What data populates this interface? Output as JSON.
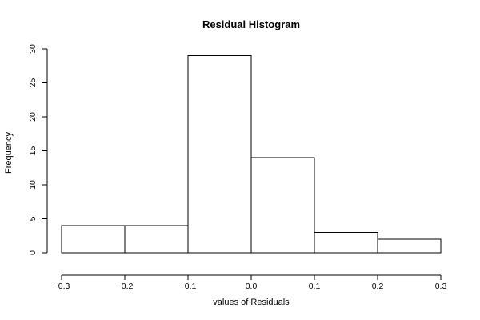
{
  "chart_data": {
    "type": "bar",
    "title": "Residual Histogram",
    "xlabel": "values of Residuals",
    "ylabel": "Frequency",
    "bins": [
      {
        "from": -0.3,
        "to": -0.2,
        "count": 4
      },
      {
        "from": -0.2,
        "to": -0.1,
        "count": 4
      },
      {
        "from": -0.1,
        "to": 0.0,
        "count": 29
      },
      {
        "from": 0.0,
        "to": 0.1,
        "count": 14
      },
      {
        "from": 0.1,
        "to": 0.2,
        "count": 3
      },
      {
        "from": 0.2,
        "to": 0.3,
        "count": 2
      }
    ],
    "xlim": [
      -0.3,
      0.3
    ],
    "ylim": [
      0,
      30
    ],
    "x_ticks": [
      -0.3,
      -0.2,
      -0.1,
      0.0,
      0.1,
      0.2,
      0.3
    ],
    "x_tick_labels": [
      "−0.3",
      "−0.2",
      "−0.1",
      "0.0",
      "0.1",
      "0.2",
      "0.3"
    ],
    "y_ticks": [
      0,
      5,
      10,
      15,
      20,
      25,
      30
    ],
    "y_tick_labels": [
      "0",
      "5",
      "10",
      "15",
      "20",
      "25",
      "30"
    ],
    "grid": false,
    "bar_fill": "#ffffff",
    "bar_stroke": "#000000"
  }
}
